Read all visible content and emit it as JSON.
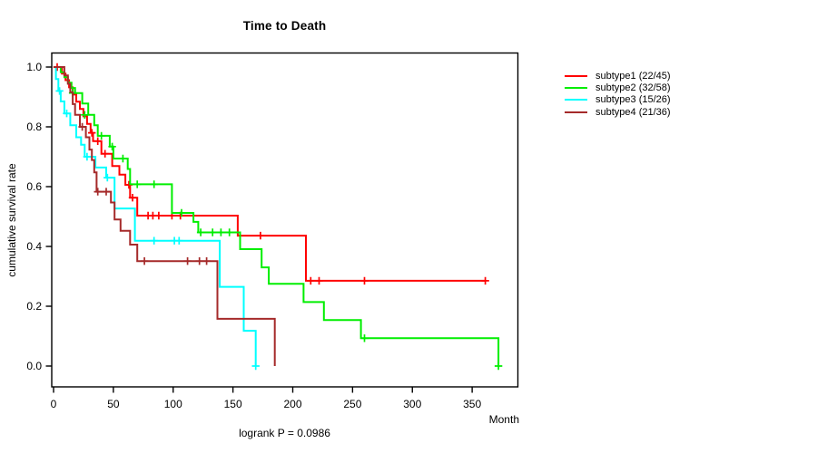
{
  "chart_data": {
    "type": "line",
    "variant": "kaplan-meier-step",
    "title": "Time to Death",
    "xlabel": "Month",
    "ylabel": "cumulative survival rate",
    "annotation": "logrank P = 0.0986",
    "x_ticks": [
      0,
      50,
      100,
      150,
      200,
      250,
      300,
      350
    ],
    "y_ticks": [
      "0.0",
      "0.2",
      "0.4",
      "0.6",
      "0.8",
      "1.0"
    ],
    "xlim": [
      0,
      388
    ],
    "ylim": [
      0.0,
      1.0
    ],
    "grid": false,
    "legend_position": "right-outside",
    "series": [
      {
        "id": "subtype1",
        "label": "subtype1 (22/45)",
        "color": "#ff0000",
        "steps": [
          [
            0,
            1.0
          ],
          [
            7,
            0.978
          ],
          [
            10,
            0.956
          ],
          [
            13,
            0.932
          ],
          [
            16,
            0.908
          ],
          [
            19,
            0.884
          ],
          [
            22,
            0.86
          ],
          [
            25,
            0.835
          ],
          [
            28,
            0.81
          ],
          [
            31,
            0.78
          ],
          [
            33,
            0.752
          ],
          [
            40,
            0.71
          ],
          [
            49,
            0.669
          ],
          [
            55,
            0.64
          ],
          [
            60,
            0.606
          ],
          [
            64,
            0.563
          ],
          [
            70,
            0.503
          ],
          [
            154,
            0.436
          ],
          [
            211,
            0.285
          ]
        ],
        "end": 361,
        "censors": [
          [
            3,
            1.0
          ],
          [
            32,
            0.78
          ],
          [
            37,
            0.752
          ],
          [
            43,
            0.71
          ],
          [
            63,
            0.606
          ],
          [
            66,
            0.563
          ],
          [
            79,
            0.503
          ],
          [
            83,
            0.503
          ],
          [
            88,
            0.503
          ],
          [
            99,
            0.503
          ],
          [
            106,
            0.503
          ],
          [
            173,
            0.436
          ],
          [
            215,
            0.285
          ],
          [
            222,
            0.285
          ],
          [
            260,
            0.285
          ],
          [
            361,
            0.285
          ]
        ]
      },
      {
        "id": "subtype2",
        "label": "subtype2 (32/58)",
        "color": "#00ee00",
        "steps": [
          [
            0,
            1.0
          ],
          [
            6,
            0.983
          ],
          [
            9,
            0.966
          ],
          [
            12,
            0.948
          ],
          [
            15,
            0.93
          ],
          [
            18,
            0.913
          ],
          [
            24,
            0.878
          ],
          [
            29,
            0.84
          ],
          [
            34,
            0.805
          ],
          [
            37,
            0.77
          ],
          [
            47,
            0.734
          ],
          [
            50,
            0.694
          ],
          [
            62,
            0.659
          ],
          [
            64,
            0.608
          ],
          [
            99,
            0.512
          ],
          [
            117,
            0.482
          ],
          [
            121,
            0.447
          ],
          [
            156,
            0.391
          ],
          [
            174,
            0.33
          ],
          [
            180,
            0.275
          ],
          [
            209,
            0.214
          ],
          [
            226,
            0.154
          ],
          [
            257,
            0.093
          ],
          [
            372,
            0.0
          ]
        ],
        "end": 372,
        "censors": [
          [
            16,
            0.913
          ],
          [
            26,
            0.84
          ],
          [
            40,
            0.77
          ],
          [
            49,
            0.734
          ],
          [
            58,
            0.694
          ],
          [
            70,
            0.608
          ],
          [
            84,
            0.608
          ],
          [
            107,
            0.512
          ],
          [
            123,
            0.447
          ],
          [
            133,
            0.447
          ],
          [
            140,
            0.447
          ],
          [
            147,
            0.447
          ],
          [
            260,
            0.093
          ],
          [
            372,
            0.0
          ]
        ]
      },
      {
        "id": "subtype3",
        "label": "subtype3 (15/26)",
        "color": "#00ffff",
        "steps": [
          [
            0,
            1.0
          ],
          [
            2,
            0.96
          ],
          [
            4,
            0.92
          ],
          [
            6,
            0.885
          ],
          [
            9,
            0.845
          ],
          [
            14,
            0.805
          ],
          [
            19,
            0.765
          ],
          [
            23,
            0.74
          ],
          [
            26,
            0.7
          ],
          [
            35,
            0.664
          ],
          [
            44,
            0.63
          ],
          [
            51,
            0.527
          ],
          [
            68,
            0.419
          ],
          [
            139,
            0.265
          ],
          [
            159,
            0.118
          ],
          [
            169,
            0.0
          ]
        ],
        "end": 169,
        "censors": [
          [
            5,
            0.92
          ],
          [
            11,
            0.845
          ],
          [
            28,
            0.7
          ],
          [
            45,
            0.63
          ],
          [
            84,
            0.419
          ],
          [
            101,
            0.419
          ],
          [
            105,
            0.419
          ],
          [
            169,
            0.0
          ]
        ]
      },
      {
        "id": "subtype4",
        "label": "subtype4 (21/36)",
        "color": "#a52a2a",
        "steps": [
          [
            0,
            1.0
          ],
          [
            9,
            0.972
          ],
          [
            12,
            0.944
          ],
          [
            14,
            0.916
          ],
          [
            16,
            0.876
          ],
          [
            18,
            0.84
          ],
          [
            22,
            0.8
          ],
          [
            27,
            0.765
          ],
          [
            30,
            0.724
          ],
          [
            32,
            0.689
          ],
          [
            34,
            0.648
          ],
          [
            36,
            0.583
          ],
          [
            48,
            0.547
          ],
          [
            51,
            0.49
          ],
          [
            56,
            0.452
          ],
          [
            64,
            0.406
          ],
          [
            70,
            0.351
          ],
          [
            137,
            0.158
          ],
          [
            185,
            0.0
          ]
        ],
        "end": 185,
        "censors": [
          [
            24,
            0.8
          ],
          [
            37,
            0.583
          ],
          [
            44,
            0.583
          ],
          [
            76,
            0.351
          ],
          [
            112,
            0.351
          ],
          [
            122,
            0.351
          ],
          [
            128,
            0.351
          ]
        ]
      }
    ]
  }
}
